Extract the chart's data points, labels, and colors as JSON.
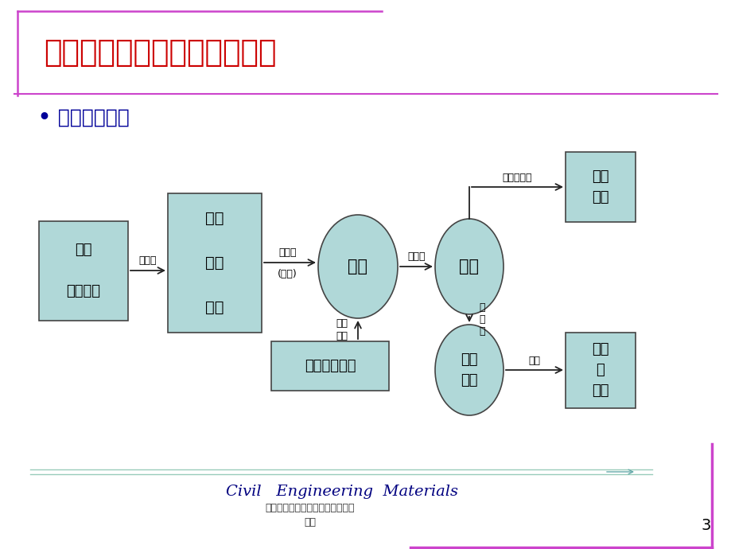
{
  "title": "研究土木工程材料的一般规律",
  "subtitle": "如下图所示：",
  "title_color": "#CC0000",
  "subtitle_color": "#000099",
  "bg_color": "#FFFFFF",
  "box_fill": "#B0D8D8",
  "box_edge": "#444444",
  "arrow_color": "#222222",
  "footer_italic": "Civil   Engineering  Materials",
  "footer_cn": "土木工程材料土木工程材料的基本\n性质",
  "page_num": "3",
  "decor_color": "#CC44CC",
  "footer_line_color": "#99CCBB",
  "footer_color": "#000080"
}
